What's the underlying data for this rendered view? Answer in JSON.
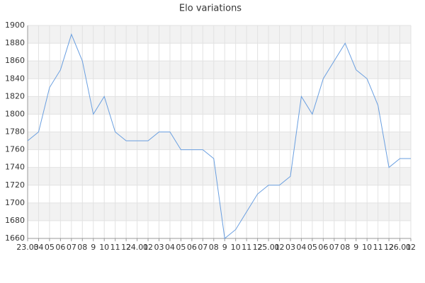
{
  "chart_data": {
    "type": "line",
    "title": "Elo variations",
    "categories": [
      "23.03",
      "04",
      "05",
      "06",
      "07",
      "08",
      "9",
      "10",
      "11",
      "12",
      "24.01",
      "02",
      "03",
      "04",
      "05",
      "06",
      "07",
      "08",
      "9",
      "10",
      "11",
      "12",
      "25.01",
      "02",
      "03",
      "04",
      "05",
      "06",
      "07",
      "08",
      "9",
      "10",
      "11",
      "12",
      "26.01",
      "02"
    ],
    "values": [
      1770,
      1780,
      1830,
      1850,
      1890,
      1860,
      1800,
      1820,
      1780,
      1770,
      1770,
      1770,
      1780,
      1780,
      1760,
      1760,
      1760,
      1750,
      1660,
      1670,
      1690,
      1710,
      1720,
      1720,
      1730,
      1820,
      1800,
      1840,
      1860,
      1880,
      1850,
      1840,
      1810,
      1740,
      1750,
      1750
    ],
    "color": "#6a9fe0",
    "ylim": [
      1660,
      1900
    ],
    "yticks": [
      1660,
      1680,
      1700,
      1720,
      1740,
      1760,
      1780,
      1800,
      1820,
      1840,
      1860,
      1880,
      1900
    ],
    "grid": true
  }
}
